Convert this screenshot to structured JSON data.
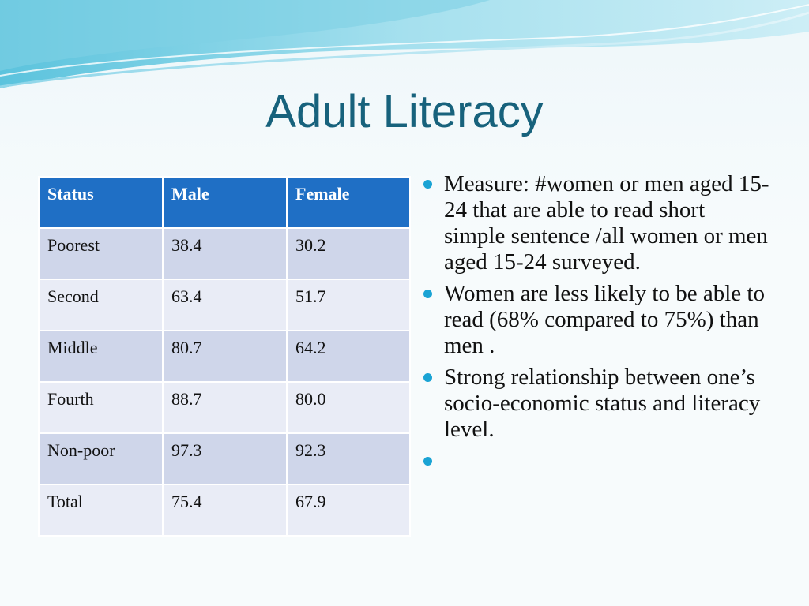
{
  "slide": {
    "title": "Adult Literacy"
  },
  "table": {
    "headers": [
      "Status",
      "Male",
      "Female"
    ],
    "rows": [
      [
        "Poorest",
        "38.4",
        "30.2"
      ],
      [
        "Second",
        "63.4",
        "51.7"
      ],
      [
        "Middle",
        "80.7",
        "64.2"
      ],
      [
        "Fourth",
        "88.7",
        "80.0"
      ],
      [
        "Non-poor",
        "97.3",
        "92.3"
      ],
      [
        "Total",
        "75.4",
        "67.9"
      ]
    ]
  },
  "bullets": [
    "Measure: #women or men aged 15-24  that are able to read short simple sentence /all women or men aged 15-24 surveyed.",
    "Women are less likely to be able to read (68% compared to 75%) than men .",
    "Strong relationship between one’s socio-economic status and literacy level.",
    ""
  ],
  "colors": {
    "title": "#17627c",
    "header_bg": "#1f6fc5",
    "row_dark": "#cfd6ea",
    "row_light": "#e9ecf6",
    "bullet": "#1aa3d4"
  }
}
